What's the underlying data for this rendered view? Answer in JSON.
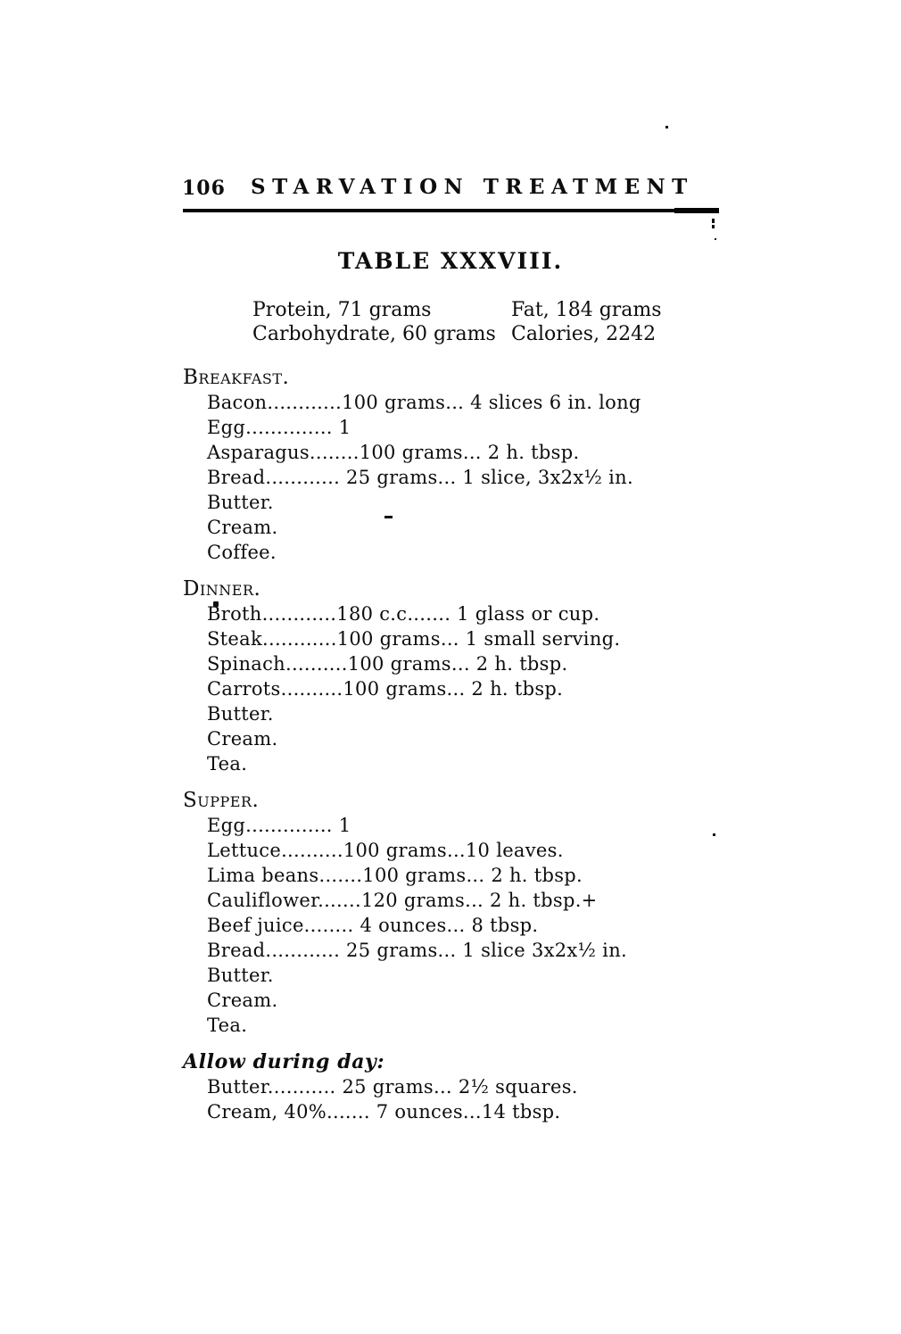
{
  "header": {
    "page_number": "106",
    "running_title": "STARVATION TREATMENT"
  },
  "table_title": "TABLE XXXVIII.",
  "summary": {
    "rows": [
      {
        "left": "Protein, 71 grams",
        "right": "Fat, 184 grams"
      },
      {
        "left": "Carbohydrate, 60 grams",
        "right": "Calories, 2242"
      }
    ]
  },
  "sections": [
    {
      "heading": "Breakfast.",
      "items": [
        "Bacon............100 grams... 4 slices 6 in. long",
        "Egg.............. 1",
        "Asparagus........100 grams... 2 h. tbsp.",
        "Bread............ 25 grams... 1 slice, 3x2x½ in.",
        "Butter.",
        "Cream.",
        "Coffee."
      ]
    },
    {
      "heading": "Dinner.",
      "items": [
        "Broth............180 c.c....... 1 glass or cup.",
        "Steak............100 grams... 1 small serving.",
        "Spinach..........100 grams... 2 h. tbsp.",
        "Carrots..........100 grams... 2 h. tbsp.",
        "Butter.",
        "Cream.",
        "Tea."
      ]
    },
    {
      "heading": "Supper.",
      "items": [
        "Egg.............. 1",
        "Lettuce..........100 grams...10 leaves.",
        "Lima beans.......100 grams... 2 h. tbsp.",
        "Cauliflower.......120 grams... 2 h. tbsp.+",
        "Beef juice........ 4 ounces... 8 tbsp.",
        "Bread............ 25 grams... 1 slice 3x2x½ in.",
        "Butter.",
        "Cream.",
        "Tea."
      ]
    },
    {
      "heading": "Allow during day:",
      "items": [
        "Butter........... 25 grams... 2½ squares.",
        "Cream, 40%....... 7 ounces...14 tbsp."
      ]
    }
  ]
}
